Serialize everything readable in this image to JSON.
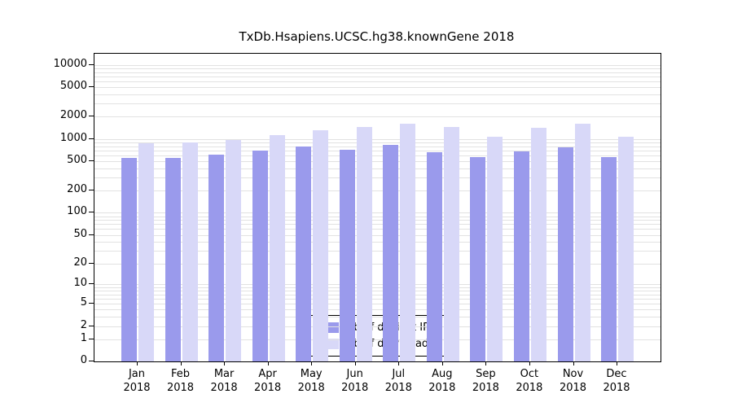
{
  "chart_data": {
    "type": "bar",
    "title": "TxDb.Hsapiens.UCSC.hg38.knownGene 2018",
    "categories": [
      "Jan",
      "Feb",
      "Mar",
      "Apr",
      "May",
      "Jun",
      "Jul",
      "Aug",
      "Sep",
      "Oct",
      "Nov",
      "Dec"
    ],
    "year_label": "2018",
    "series": [
      {
        "name": "Nb of distinct IPs",
        "color": "#9a9aec",
        "values": [
          550,
          560,
          620,
          700,
          790,
          710,
          840,
          660,
          570,
          680,
          770,
          570
        ]
      },
      {
        "name": "Nb of downloads",
        "color": "#d8d8f8",
        "values": [
          870,
          890,
          980,
          1120,
          1300,
          1450,
          1600,
          1450,
          1060,
          1400,
          1600,
          1080
        ]
      }
    ],
    "y_ticks": [
      0,
      1,
      2,
      5,
      10,
      20,
      50,
      100,
      200,
      500,
      1000,
      2000,
      5000,
      10000
    ],
    "ylim": [
      0,
      10000
    ],
    "y_scale": "log10(1+v)",
    "grid": true,
    "grid_color": "#e2e2e2",
    "axis_color": "#000000",
    "legend_position": "bottom-center-inside",
    "xlabel": "",
    "ylabel": ""
  }
}
